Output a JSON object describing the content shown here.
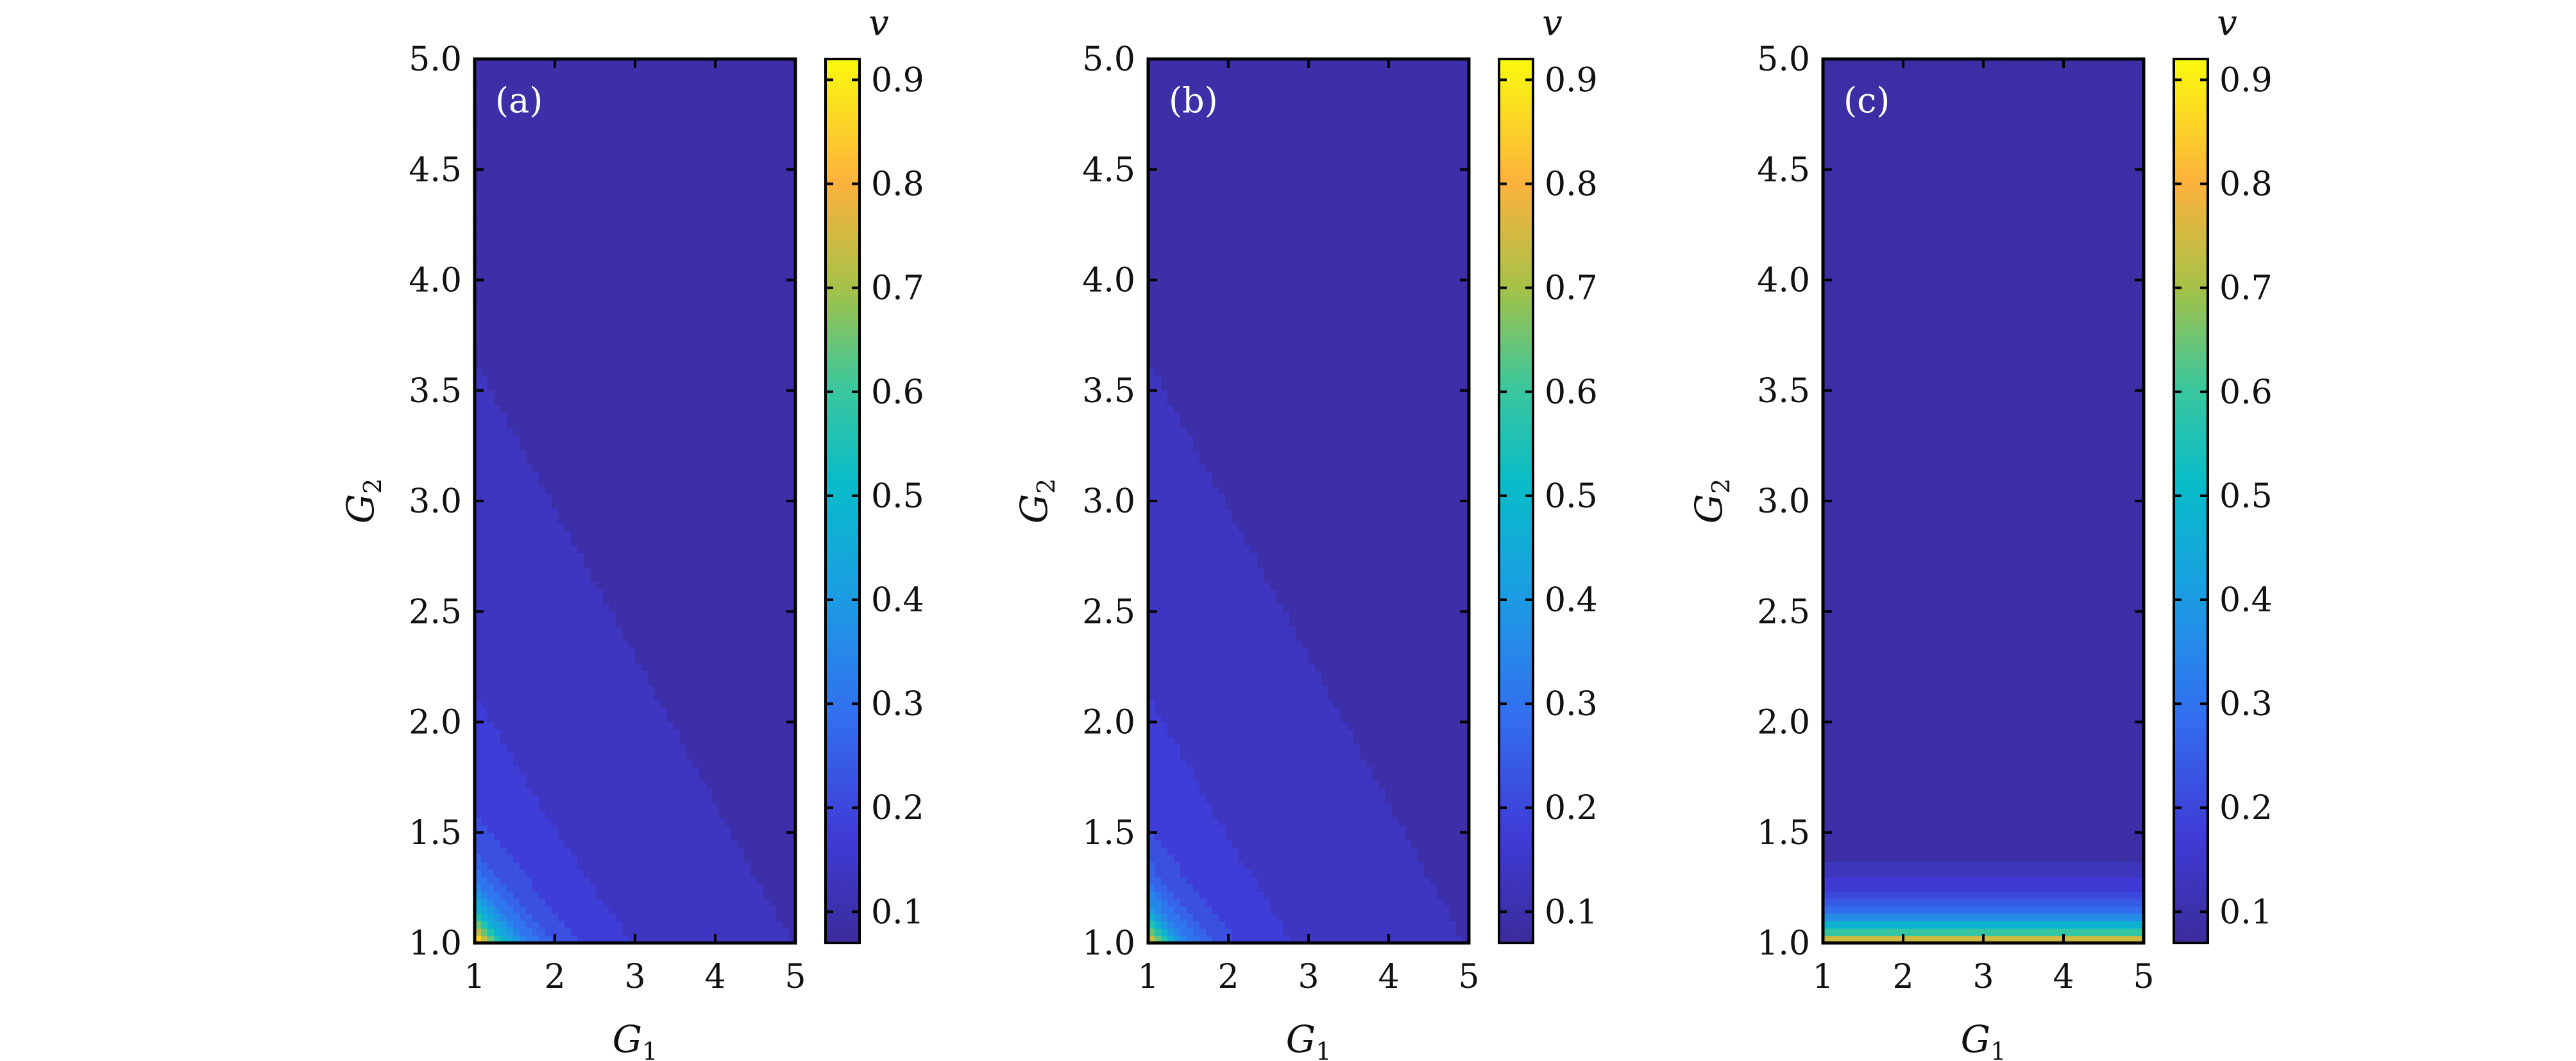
{
  "chart_data": [
    {
      "type": "heatmap",
      "panel_label": "(a)",
      "xlabel": "G",
      "xlabel_sub": "1",
      "ylabel": "G",
      "ylabel_sub": "2",
      "xlim": [
        1,
        5
      ],
      "ylim": [
        1,
        5
      ],
      "x_ticks": [
        "1",
        "2",
        "3",
        "4",
        "5"
      ],
      "y_ticks": [
        "1.0",
        "1.5",
        "2.0",
        "2.5",
        "3.0",
        "3.5",
        "4.0",
        "4.5",
        "5.0"
      ],
      "colorbar_label": "v",
      "colorbar_ticks": [
        "0.1",
        "0.2",
        "0.3",
        "0.4",
        "0.5",
        "0.6",
        "0.7",
        "0.8",
        "0.9"
      ],
      "colorbar_range": [
        0.07,
        0.92
      ],
      "field": {
        "model": "both",
        "base": 0.075,
        "amplitude": 0.775,
        "decay_x": 0.42,
        "decay_y": 0.16,
        "levels": 20
      }
    },
    {
      "type": "heatmap",
      "panel_label": "(b)",
      "xlabel": "G",
      "xlabel_sub": "1",
      "ylabel": "G",
      "ylabel_sub": "2",
      "xlim": [
        1,
        5
      ],
      "ylim": [
        1,
        5
      ],
      "x_ticks": [
        "1",
        "2",
        "3",
        "4",
        "5"
      ],
      "y_ticks": [
        "1.0",
        "1.5",
        "2.0",
        "2.5",
        "3.0",
        "3.5",
        "4.0",
        "4.5",
        "5.0"
      ],
      "colorbar_label": "v",
      "colorbar_ticks": [
        "0.1",
        "0.2",
        "0.3",
        "0.4",
        "0.5",
        "0.6",
        "0.7",
        "0.8",
        "0.9"
      ],
      "colorbar_range": [
        0.07,
        0.92
      ],
      "field": {
        "model": "both",
        "base": 0.075,
        "amplitude": 0.675,
        "decay_x": 0.34,
        "decay_y": 0.14,
        "levels": 20
      }
    },
    {
      "type": "heatmap",
      "panel_label": "(c)",
      "xlabel": "G",
      "xlabel_sub": "1",
      "ylabel": "G",
      "ylabel_sub": "2",
      "xlim": [
        1,
        5
      ],
      "ylim": [
        1,
        5
      ],
      "x_ticks": [
        "1",
        "2",
        "3",
        "4",
        "5"
      ],
      "y_ticks": [
        "1.0",
        "1.5",
        "2.0",
        "2.5",
        "3.0",
        "3.5",
        "4.0",
        "4.5",
        "5.0"
      ],
      "colorbar_label": "v",
      "colorbar_ticks": [
        "0.1",
        "0.2",
        "0.3",
        "0.4",
        "0.5",
        "0.6",
        "0.7",
        "0.8",
        "0.9"
      ],
      "colorbar_range": [
        0.07,
        0.92
      ],
      "field": {
        "model": "y_only",
        "base": 0.075,
        "amplitude": 0.78,
        "decay_y": 0.12,
        "levels": 22
      }
    }
  ]
}
